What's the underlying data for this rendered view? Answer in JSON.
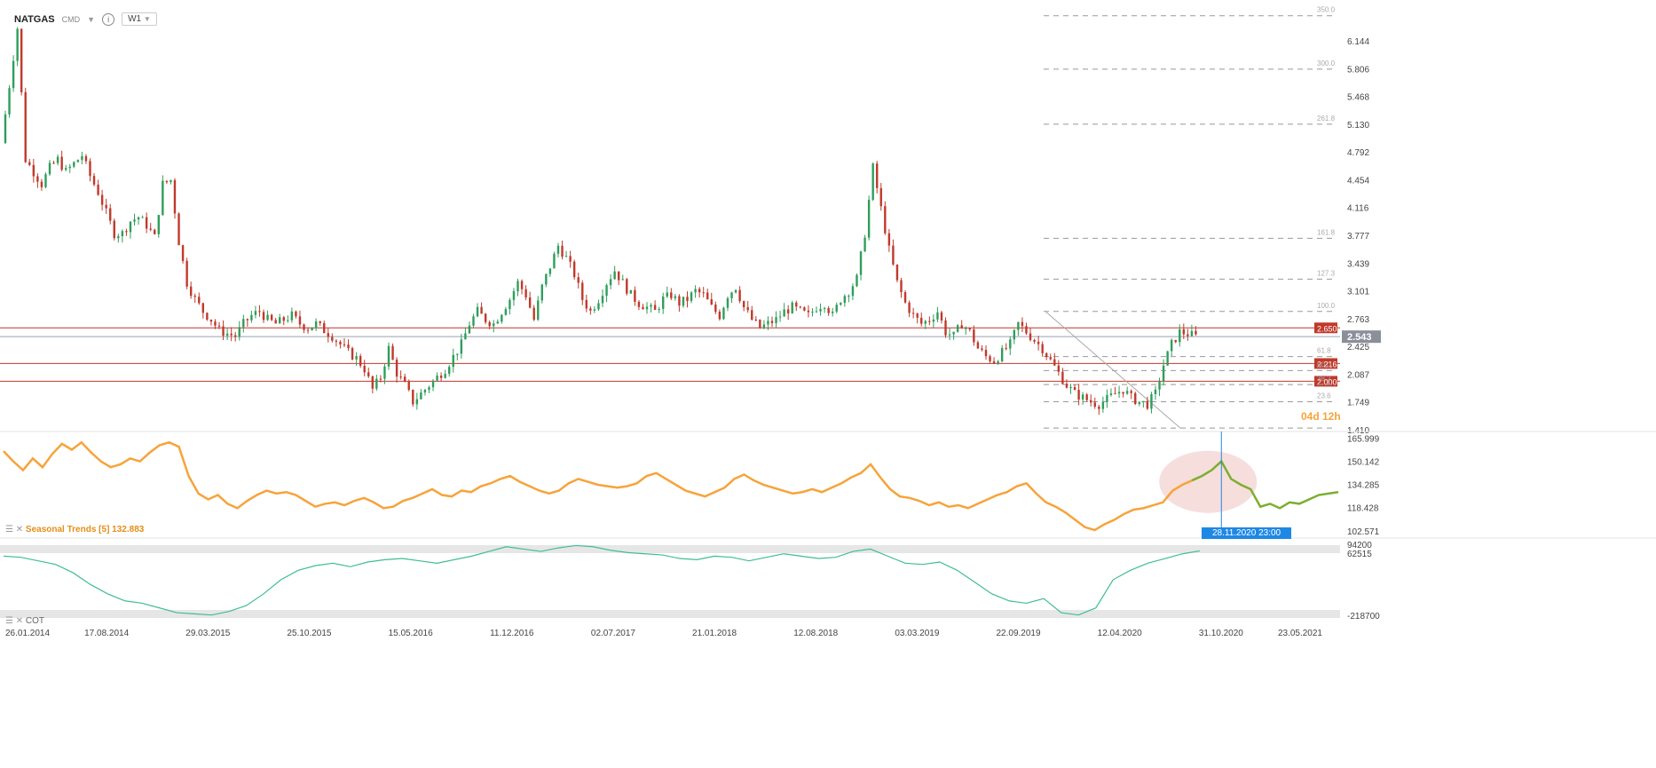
{
  "header": {
    "symbol": "NATGAS",
    "market": "CMD",
    "timeframe": "W1"
  },
  "colors": {
    "up": "#2e9e5b",
    "down": "#c0392b",
    "seasonal_orange": "#f7a33a",
    "seasonal_green": "#7cae2f",
    "cot_line": "#3fbf8f",
    "level_line": "#c0392b",
    "price_tag": "#8a8f99",
    "tooltip": "#1e88e5",
    "countdown": "#f7a33a"
  },
  "chart_data": [
    {
      "type": "candlestick",
      "name": "NATGAS W1",
      "x_ticks": [
        "26.01.2014",
        "17.08.2014",
        "29.03.2015",
        "25.10.2015",
        "15.05.2016",
        "11.12.2016",
        "02.07.2017",
        "21.01.2018",
        "12.08.2018",
        "03.03.2019",
        "22.09.2019",
        "12.04.2020",
        "31.10.2020",
        "23.05.2021"
      ],
      "y_ticks": [
        1.41,
        1.749,
        2.087,
        2.425,
        2.763,
        3.101,
        3.439,
        3.777,
        4.116,
        4.454,
        4.792,
        5.13,
        5.468,
        5.806,
        6.144
      ],
      "ylim": [
        1.41,
        6.49
      ],
      "close_path": [
        4.9,
        5.6,
        6.3,
        4.7,
        4.55,
        4.4,
        4.6,
        4.7,
        4.55,
        4.65,
        4.75,
        4.5,
        4.3,
        4.05,
        3.8,
        3.8,
        3.95,
        4.0,
        3.9,
        3.75,
        4.4,
        4.45,
        3.7,
        3.2,
        3.0,
        2.85,
        2.75,
        2.62,
        2.58,
        2.55,
        2.7,
        2.8,
        2.85,
        2.75,
        2.7,
        2.75,
        2.8,
        2.7,
        2.65,
        2.7,
        2.62,
        2.55,
        2.45,
        2.35,
        2.28,
        2.15,
        1.9,
        2.05,
        2.4,
        2.1,
        1.95,
        1.75,
        1.85,
        1.95,
        2.05,
        2.15,
        2.3,
        2.45,
        2.7,
        2.85,
        2.75,
        2.7,
        2.85,
        3.0,
        3.2,
        3.05,
        2.75,
        3.15,
        3.4,
        3.65,
        3.5,
        3.3,
        3.0,
        2.85,
        3.0,
        3.2,
        3.35,
        3.2,
        3.05,
        2.95,
        2.9,
        2.85,
        3.0,
        3.05,
        2.95,
        3.0,
        3.1,
        3.05,
        2.9,
        2.8,
        3.05,
        3.15,
        2.9,
        2.75,
        2.65,
        2.7,
        2.75,
        2.85,
        2.9,
        2.85,
        2.8,
        2.9,
        2.95,
        2.8,
        3.0,
        3.1,
        3.25,
        3.8,
        4.6,
        4.1,
        3.6,
        3.2,
        2.95,
        2.8,
        2.7,
        2.75,
        2.85,
        2.6,
        2.55,
        2.7,
        2.6,
        2.4,
        2.3,
        2.25,
        2.35,
        2.45,
        2.7,
        2.6,
        2.5,
        2.4,
        2.25,
        2.1,
        1.95,
        1.85,
        1.8,
        1.75,
        1.72,
        1.78,
        1.85,
        1.9,
        1.8,
        1.75,
        1.72,
        1.85,
        2.2,
        2.45,
        2.6,
        2.58,
        2.543
      ],
      "levels": [
        "2.650",
        "2.216",
        "2.000"
      ],
      "current_price": "2.543",
      "fibonacci": [
        "350.0",
        "300.0",
        "261.8",
        "161.8",
        "127.3",
        "100.0",
        "61.8",
        "50.0",
        "38.2",
        "23.6"
      ],
      "countdown": "04d 12h"
    },
    {
      "type": "line",
      "name": "Seasonal Trends",
      "label": "Seasonal  Trends  [5]  132.883",
      "y_ticks": [
        102.571,
        118.428,
        134.285,
        150.142,
        165.999
      ],
      "ylim": [
        100,
        168
      ],
      "values": [
        157,
        150,
        144,
        152,
        146,
        155,
        162,
        158,
        163,
        156,
        150,
        146,
        148,
        152,
        150,
        156,
        161,
        163,
        160,
        140,
        128,
        124,
        127,
        121,
        118,
        123,
        127,
        130,
        128,
        129,
        127,
        123,
        119,
        121,
        122,
        120,
        123,
        125,
        122,
        118,
        119,
        123,
        125,
        128,
        131,
        127,
        126,
        130,
        129,
        133,
        135,
        138,
        140,
        136,
        133,
        130,
        128,
        130,
        135,
        138,
        136,
        134,
        133,
        132,
        133,
        135,
        140,
        142,
        138,
        134,
        130,
        128,
        126,
        129,
        132,
        138,
        141,
        137,
        134,
        132,
        130,
        128,
        129,
        131,
        129,
        132,
        135,
        139,
        142,
        148,
        139,
        131,
        126,
        125,
        123,
        120,
        122,
        119,
        120,
        118,
        121,
        124,
        127,
        129,
        133,
        135,
        128,
        122,
        119,
        115,
        110,
        105,
        103,
        107,
        110,
        114,
        117,
        118,
        120,
        122,
        130,
        134,
        137,
        140,
        144,
        150,
        138,
        134,
        131,
        119,
        121,
        118,
        122,
        121,
        124,
        127,
        128,
        129
      ],
      "forecast_from_index": 122,
      "tooltip": "28.11.2020 23:00"
    },
    {
      "type": "line",
      "name": "COT",
      "label": "COT",
      "y_ticks": [
        94200,
        62515,
        -218700
      ],
      "ylim": [
        -218700,
        94200
      ],
      "values": [
        40000,
        35000,
        20000,
        5000,
        -30000,
        -80000,
        -120000,
        -150000,
        -160000,
        -180000,
        -200000,
        -205000,
        -210000,
        -195000,
        -170000,
        -120000,
        -60000,
        -20000,
        0,
        10000,
        -5000,
        15000,
        25000,
        30000,
        20000,
        10000,
        25000,
        40000,
        60000,
        80000,
        70000,
        60000,
        75000,
        85000,
        80000,
        65000,
        55000,
        50000,
        45000,
        30000,
        25000,
        40000,
        35000,
        20000,
        35000,
        50000,
        40000,
        30000,
        35000,
        60000,
        70000,
        40000,
        10000,
        5000,
        15000,
        -20000,
        -70000,
        -120000,
        -150000,
        -160000,
        -140000,
        -200000,
        -210000,
        -180000,
        -60000,
        -20000,
        10000,
        30000,
        50000,
        62515
      ]
    }
  ]
}
